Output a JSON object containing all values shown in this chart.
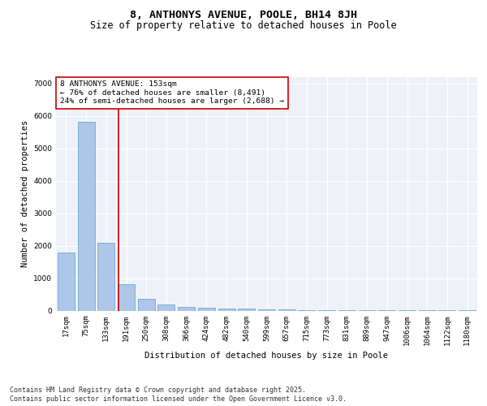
{
  "title": "8, ANTHONYS AVENUE, POOLE, BH14 8JH",
  "subtitle": "Size of property relative to detached houses in Poole",
  "xlabel": "Distribution of detached houses by size in Poole",
  "ylabel": "Number of detached properties",
  "categories": [
    "17sqm",
    "75sqm",
    "133sqm",
    "191sqm",
    "250sqm",
    "308sqm",
    "366sqm",
    "424sqm",
    "482sqm",
    "540sqm",
    "599sqm",
    "657sqm",
    "715sqm",
    "773sqm",
    "831sqm",
    "889sqm",
    "947sqm",
    "1006sqm",
    "1064sqm",
    "1122sqm",
    "1180sqm"
  ],
  "values": [
    1800,
    5820,
    2100,
    820,
    375,
    200,
    120,
    90,
    70,
    55,
    45,
    30,
    20,
    12,
    8,
    5,
    3,
    2,
    2,
    1,
    1
  ],
  "bar_color": "#aec6e8",
  "bar_edge_color": "#5a9fd4",
  "vline_x": 2.62,
  "vline_color": "#cc0000",
  "annotation_text": "8 ANTHONYS AVENUE: 153sqm\n← 76% of detached houses are smaller (8,491)\n24% of semi-detached houses are larger (2,688) →",
  "annotation_box_color": "#ffffff",
  "annotation_box_edge_color": "#cc0000",
  "ylim": [
    0,
    7200
  ],
  "yticks": [
    0,
    1000,
    2000,
    3000,
    4000,
    5000,
    6000,
    7000
  ],
  "bg_color": "#eef2f8",
  "footer_line1": "Contains HM Land Registry data © Crown copyright and database right 2025.",
  "footer_line2": "Contains public sector information licensed under the Open Government Licence v3.0.",
  "title_fontsize": 9.5,
  "subtitle_fontsize": 8.5,
  "axis_label_fontsize": 7.5,
  "tick_fontsize": 6.5,
  "annotation_fontsize": 6.8,
  "footer_fontsize": 6.0
}
